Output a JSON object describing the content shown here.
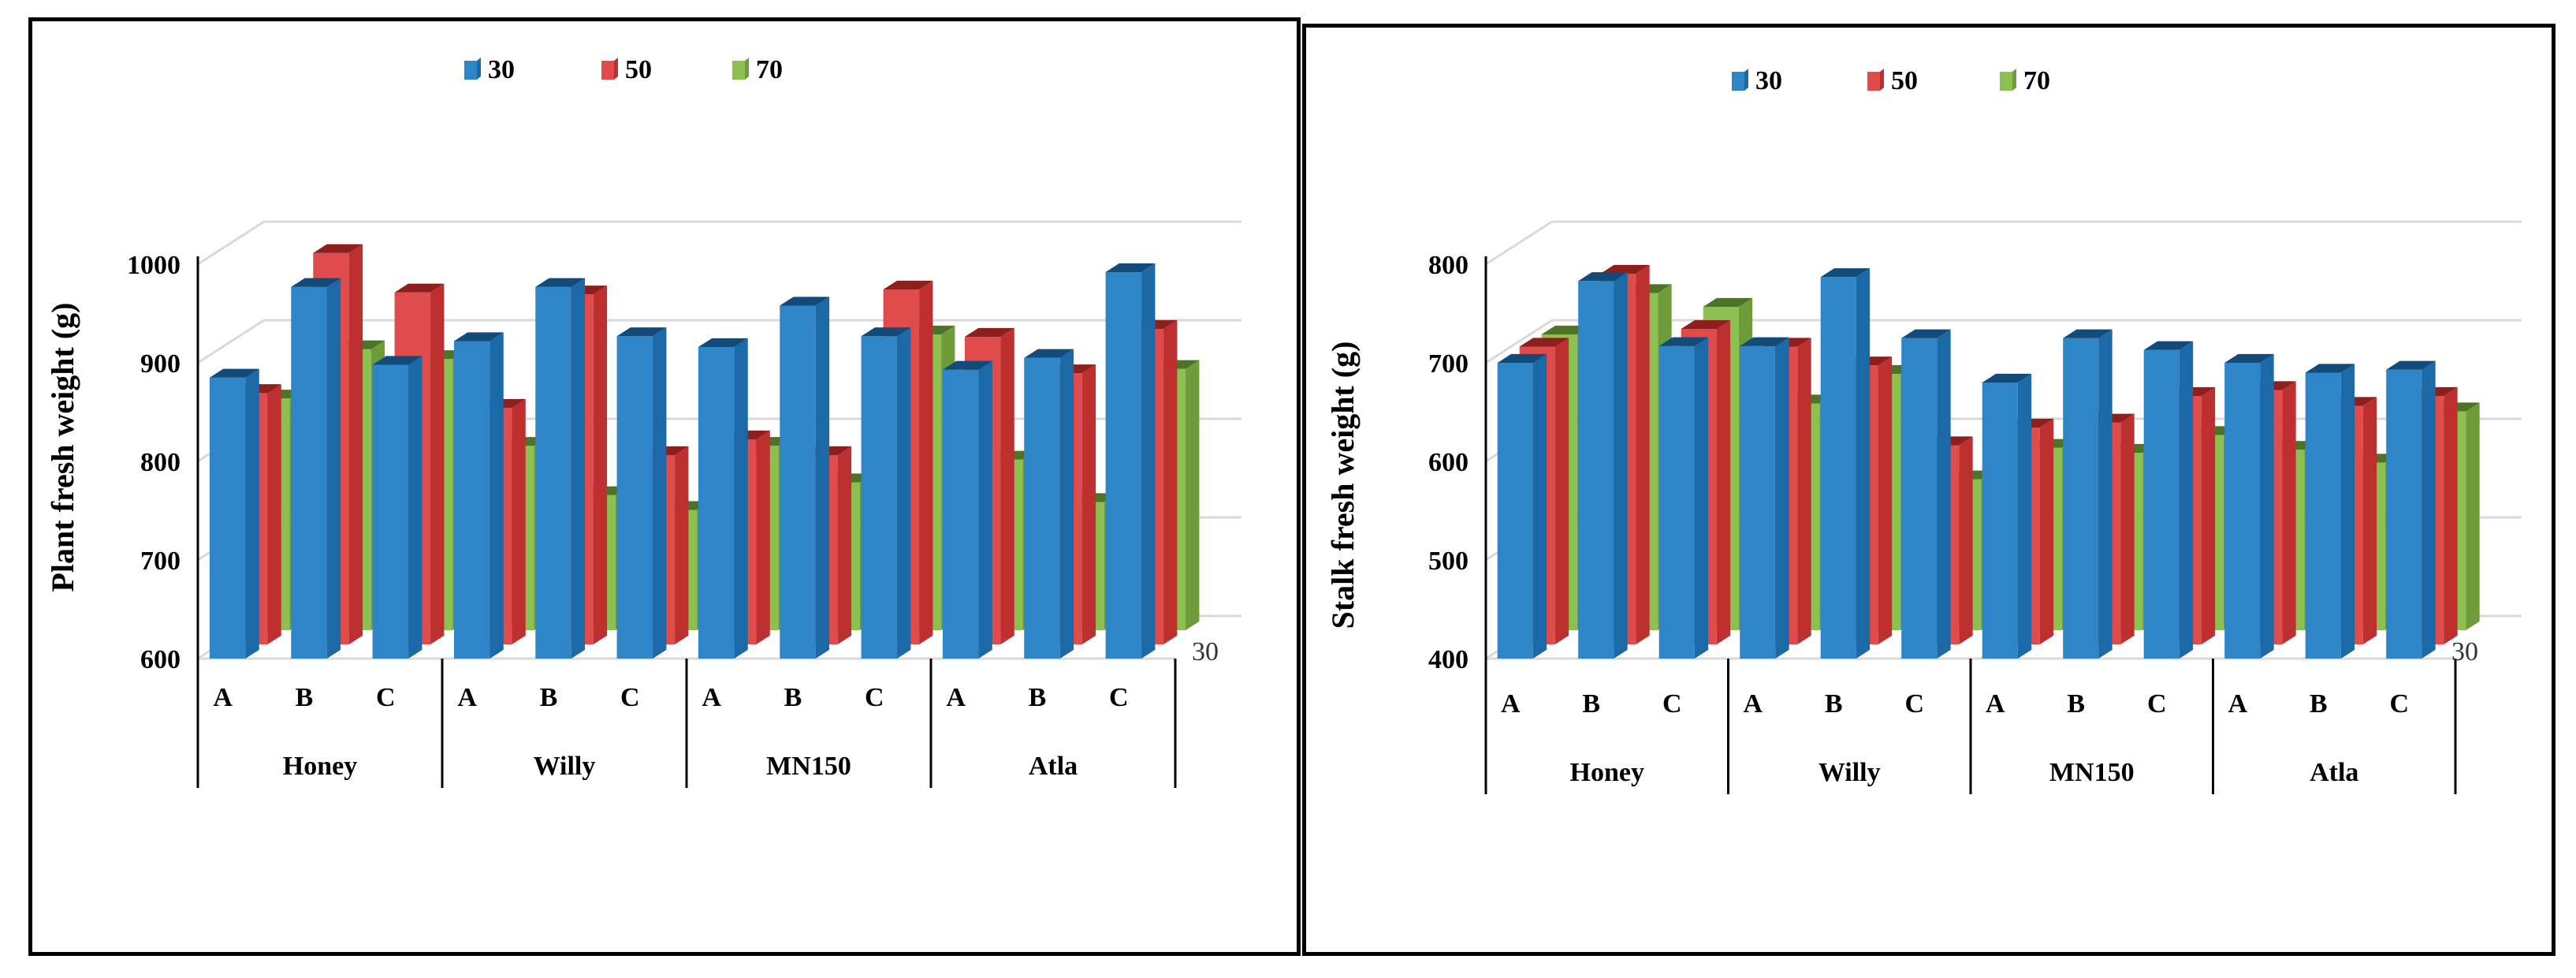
{
  "colors": {
    "s30": [
      "#2E86C8",
      "#1B69A6",
      "#124B79"
    ],
    "s50": [
      "#E04B4B",
      "#BE2F2F",
      "#8E1F1F"
    ],
    "s70": [
      "#8CC152",
      "#6E9C39",
      "#4E7228"
    ],
    "grid": "#d9d9d9",
    "axis": "#000000",
    "text": "#000000",
    "depth_label": "#333333"
  },
  "chart_data": [
    {
      "type": "bar",
      "style": "3d-clustered-column",
      "ylabel": "Plant fresh weight (g)",
      "ylim": [
        600,
        1000
      ],
      "yticks": [
        600,
        700,
        800,
        900,
        1000
      ],
      "legend_position": "top",
      "depth_axis_label": "30",
      "groups": [
        "Honey",
        "Willy",
        "MN150",
        "Atla"
      ],
      "subcategories": [
        "A",
        "B",
        "C"
      ],
      "series": [
        {
          "name": "30",
          "values": [
            [
              885,
              977,
              898
            ],
            [
              922,
              977,
              927
            ],
            [
              916,
              958,
              927
            ],
            [
              893,
              905,
              992
            ]
          ]
        },
        {
          "name": "50",
          "values": [
            [
              855,
              997,
              957
            ],
            [
              840,
              955,
              792
            ],
            [
              808,
              792,
              960
            ],
            [
              912,
              875,
              920
            ]
          ]
        },
        {
          "name": "70",
          "values": [
            [
              835,
              885,
              875
            ],
            [
              787,
              737,
              722
            ],
            [
              787,
              750,
              900
            ],
            [
              773,
              730,
              865
            ]
          ]
        }
      ]
    },
    {
      "type": "bar",
      "style": "3d-clustered-column",
      "ylabel": "Stalk  fresh weight (g)",
      "ylim": [
        400,
        800
      ],
      "yticks": [
        400,
        500,
        600,
        700,
        800
      ],
      "legend_position": "top",
      "depth_axis_label": "30",
      "groups": [
        "Honey",
        "Willy",
        "MN150",
        "Atla"
      ],
      "subcategories": [
        "A",
        "B",
        "C"
      ],
      "series": [
        {
          "name": "30",
          "values": [
            [
              700,
              783,
              717
            ],
            [
              717,
              787,
              725
            ],
            [
              680,
              725,
              713
            ],
            [
              700,
              690,
              693
            ]
          ]
        },
        {
          "name": "50",
          "values": [
            [
              702,
              776,
              720
            ],
            [
              702,
              683,
              602
            ],
            [
              620,
              625,
              652
            ],
            [
              658,
              642,
              652
            ]
          ]
        },
        {
          "name": "70",
          "values": [
            [
              700,
              742,
              728
            ],
            [
              630,
              660,
              553
            ],
            [
              585,
              580,
              598
            ],
            [
              583,
              570,
              622
            ]
          ]
        }
      ]
    }
  ]
}
